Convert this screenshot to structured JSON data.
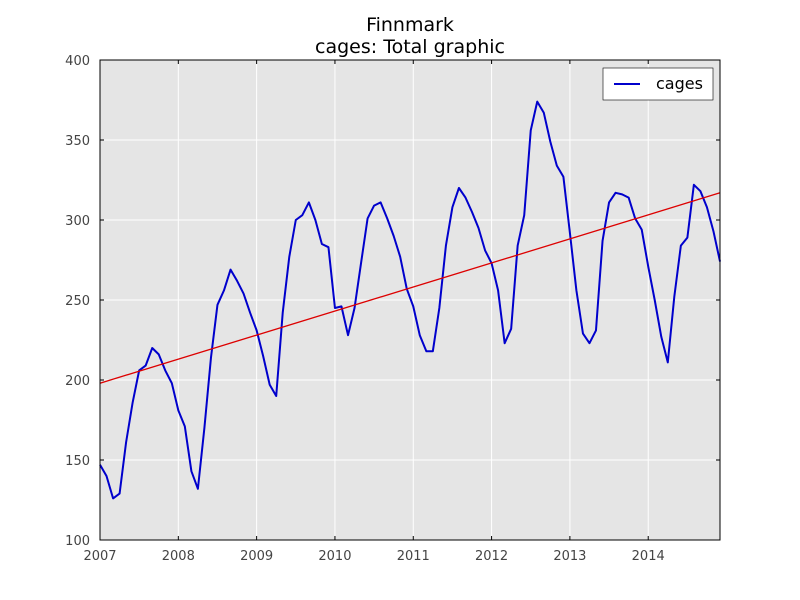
{
  "chart_data": {
    "type": "line",
    "title": "Finnmark",
    "subtitle": "cages: Total graphic",
    "xlabel": "",
    "ylabel": "",
    "xlim": [
      2007.0,
      2014.9167
    ],
    "ylim": [
      100,
      400
    ],
    "x_ticks": [
      2007,
      2008,
      2009,
      2010,
      2011,
      2012,
      2013,
      2014
    ],
    "x_tick_labels": [
      "2007",
      "2008",
      "2009",
      "2010",
      "2011",
      "2012",
      "2013",
      "2014"
    ],
    "y_ticks": [
      100,
      150,
      200,
      250,
      300,
      350,
      400
    ],
    "y_tick_labels": [
      "100",
      "150",
      "200",
      "250",
      "300",
      "350",
      "400"
    ],
    "grid": true,
    "legend_position": "top-right",
    "series": [
      {
        "name": "cages",
        "color": "#0000cc",
        "x": [
          2007.0,
          2007.083,
          2007.167,
          2007.25,
          2007.333,
          2007.417,
          2007.5,
          2007.583,
          2007.667,
          2007.75,
          2007.833,
          2007.917,
          2008.0,
          2008.083,
          2008.167,
          2008.25,
          2008.333,
          2008.417,
          2008.5,
          2008.583,
          2008.667,
          2008.75,
          2008.833,
          2008.917,
          2009.0,
          2009.083,
          2009.167,
          2009.25,
          2009.333,
          2009.417,
          2009.5,
          2009.583,
          2009.667,
          2009.75,
          2009.833,
          2009.917,
          2010.0,
          2010.083,
          2010.167,
          2010.25,
          2010.333,
          2010.417,
          2010.5,
          2010.583,
          2010.667,
          2010.75,
          2010.833,
          2010.917,
          2011.0,
          2011.083,
          2011.167,
          2011.25,
          2011.333,
          2011.417,
          2011.5,
          2011.583,
          2011.667,
          2011.75,
          2011.833,
          2011.917,
          2012.0,
          2012.083,
          2012.167,
          2012.25,
          2012.333,
          2012.417,
          2012.5,
          2012.583,
          2012.667,
          2012.75,
          2012.833,
          2012.917,
          2013.0,
          2013.083,
          2013.167,
          2013.25,
          2013.333,
          2013.417,
          2013.5,
          2013.583,
          2013.667,
          2013.75,
          2013.833,
          2013.917,
          2014.0,
          2014.083,
          2014.167,
          2014.25,
          2014.333,
          2014.417,
          2014.5,
          2014.583,
          2014.667,
          2014.75,
          2014.833,
          2014.917
        ],
        "values": [
          147,
          140,
          126,
          129,
          161,
          186,
          206,
          209,
          220,
          216,
          206,
          198,
          181,
          171,
          143,
          132,
          170,
          214,
          247,
          256,
          269,
          262,
          254,
          242,
          231,
          215,
          197,
          190,
          242,
          277,
          300,
          303,
          311,
          300,
          285,
          283,
          245,
          246,
          228,
          245,
          273,
          301,
          309,
          311,
          301,
          290,
          277,
          257,
          246,
          228,
          218,
          218,
          245,
          284,
          308,
          320,
          314,
          305,
          295,
          281,
          273,
          256,
          223,
          232,
          284,
          303,
          356,
          374,
          367,
          349,
          334,
          327,
          292,
          256,
          229,
          223,
          231,
          287,
          311,
          317,
          316,
          314,
          301,
          294,
          271,
          250,
          227,
          211,
          252,
          284,
          289,
          322,
          318,
          308,
          293,
          274
        ]
      },
      {
        "color": "#dd0000",
        "x": [
          2007.0,
          2014.917
        ],
        "values": [
          198,
          317
        ]
      }
    ]
  }
}
